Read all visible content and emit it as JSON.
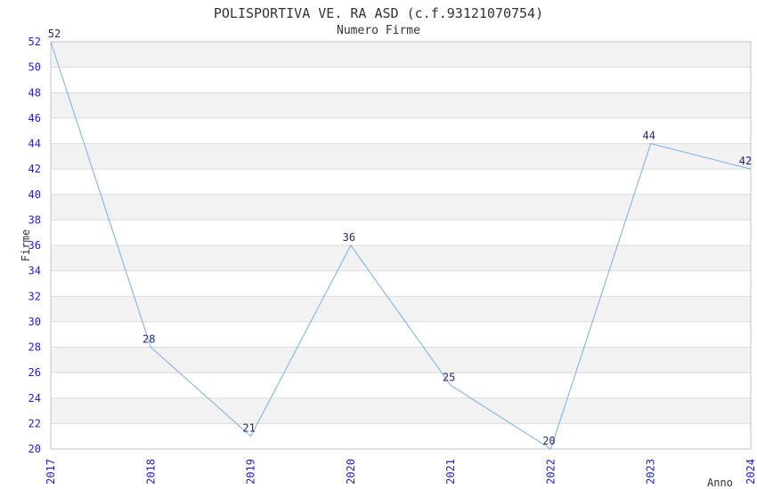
{
  "chart_data": {
    "type": "line",
    "title": "POLISPORTIVA VE. RA ASD (c.f.93121070754)",
    "subtitle": "Numero Firme",
    "xlabel": "Anno",
    "ylabel": "Firme",
    "categories": [
      "2017",
      "2018",
      "2019",
      "2020",
      "2021",
      "2022",
      "2023",
      "2024"
    ],
    "values": [
      52,
      28,
      21,
      36,
      25,
      20,
      44,
      42
    ],
    "ylim": [
      20,
      52
    ],
    "ytick_step": 2,
    "grid": "horizontal-bands-alternating",
    "legend": "none",
    "colors": {
      "line": "#7aaee3",
      "tick_label": "#2222cc",
      "data_label": "#26266e",
      "band": "#f2f2f2",
      "gridline": "#dcdcdc",
      "plot_border": "#c6c6c6",
      "text": "#333333"
    }
  }
}
